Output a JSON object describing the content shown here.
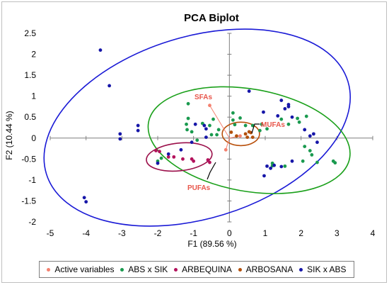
{
  "chart_data": {
    "type": "scatter",
    "title": "PCA Biplot",
    "xlabel": "F1 (89.56 %)",
    "ylabel": "F2 (10.44 %)",
    "xlim": [
      -5,
      4
    ],
    "ylim": [
      -2,
      2.5
    ],
    "x_ticks": [
      "-5",
      "-4",
      "-3",
      "-2",
      "-1",
      "0",
      "1",
      "2",
      "3",
      "4"
    ],
    "y_ticks": [
      "2.5",
      "2",
      "1.5",
      "1",
      "0.5",
      "0",
      "-0.5",
      "-1",
      "-1.5",
      "-2"
    ],
    "grid": false,
    "legend_position": "bottom",
    "series": [
      {
        "name": "Active variables",
        "color": "#f4816f",
        "points": [
          [
            -0.55,
            0.78
          ],
          [
            0.3,
            0.05
          ],
          [
            -0.1,
            -0.28
          ]
        ]
      },
      {
        "name": "ABS x SIK",
        "color": "#1a9a4f",
        "points": [
          [
            -1.15,
            0.82
          ],
          [
            -1.15,
            0.47
          ],
          [
            -1.2,
            0.33
          ],
          [
            -1.18,
            0.2
          ],
          [
            -1.05,
            0.15
          ],
          [
            -0.9,
            -0.05
          ],
          [
            -0.75,
            0.35
          ],
          [
            -0.55,
            0.3
          ],
          [
            -0.45,
            0.45
          ],
          [
            -0.5,
            0.08
          ],
          [
            -0.3,
            0.2
          ],
          [
            -0.35,
            0.08
          ],
          [
            0.1,
            0.6
          ],
          [
            0.1,
            0.43
          ],
          [
            0.15,
            0.32
          ],
          [
            0.3,
            0.48
          ],
          [
            0.45,
            0.3
          ],
          [
            0.65,
            0.3
          ],
          [
            0.85,
            0.18
          ],
          [
            1.05,
            0.22
          ],
          [
            0.9,
            0.33
          ],
          [
            1.45,
            0.45
          ],
          [
            1.65,
            0.33
          ],
          [
            1.9,
            0.47
          ],
          [
            1.95,
            0.38
          ],
          [
            2.15,
            0.52
          ],
          [
            1.2,
            -0.6
          ],
          [
            1.2,
            -0.66
          ],
          [
            1.55,
            -0.67
          ],
          [
            2.05,
            -0.55
          ],
          [
            2.1,
            -0.2
          ],
          [
            2.25,
            -0.3
          ],
          [
            2.3,
            -0.4
          ],
          [
            2.45,
            -0.58
          ],
          [
            2.9,
            -0.55
          ],
          [
            2.95,
            -0.59
          ],
          [
            -1.9,
            -0.48
          ],
          [
            -2.0,
            -0.55
          ]
        ]
      },
      {
        "name": "ARBEQUINA",
        "color": "#b3125c",
        "points": [
          [
            -2.05,
            -0.3
          ],
          [
            -1.95,
            -0.32
          ],
          [
            -1.7,
            -0.45
          ],
          [
            -1.55,
            -0.45
          ],
          [
            -1.3,
            -0.5
          ],
          [
            -1.05,
            -0.5
          ],
          [
            -1.0,
            -0.55
          ],
          [
            -0.6,
            -0.52
          ],
          [
            -0.55,
            -0.58
          ]
        ]
      },
      {
        "name": "ARBOSANA",
        "color": "#b3500c",
        "points": [
          [
            0.05,
            0.14
          ],
          [
            0.2,
            0.05
          ],
          [
            0.5,
            0.02
          ],
          [
            0.45,
            0.1
          ],
          [
            0.55,
            0.15
          ],
          [
            0.6,
            0.13
          ],
          [
            0.65,
            0.02
          ]
        ]
      },
      {
        "name": "SIK x ABS",
        "color": "#1616a8",
        "points": [
          [
            -3.6,
            2.1
          ],
          [
            -3.35,
            1.25
          ],
          [
            -3.05,
            0.1
          ],
          [
            -3.05,
            -0.02
          ],
          [
            -2.55,
            0.3
          ],
          [
            -2.55,
            0.18
          ],
          [
            -2.0,
            -0.6
          ],
          [
            -1.7,
            -0.38
          ],
          [
            -1.35,
            -0.28
          ],
          [
            -1.05,
            -0.1
          ],
          [
            -0.95,
            0.33
          ],
          [
            -0.7,
            0.3
          ],
          [
            -0.65,
            0.22
          ],
          [
            -0.65,
            0.02
          ],
          [
            -4.05,
            -1.42
          ],
          [
            -4.0,
            -1.52
          ],
          [
            0.55,
            1.12
          ],
          [
            0.95,
            0.62
          ],
          [
            1.05,
            -0.67
          ],
          [
            1.15,
            -0.72
          ],
          [
            1.35,
            0.53
          ],
          [
            1.45,
            0.9
          ],
          [
            1.55,
            0.7
          ],
          [
            1.65,
            0.8
          ],
          [
            1.75,
            -0.55
          ],
          [
            1.75,
            0.5
          ],
          [
            1.25,
            -0.65
          ],
          [
            1.45,
            -0.68
          ],
          [
            1.65,
            0.75
          ],
          [
            2.1,
            0.2
          ],
          [
            2.25,
            0.05
          ],
          [
            2.35,
            0.1
          ],
          [
            2.45,
            -0.1
          ],
          [
            0.97,
            -0.9
          ]
        ]
      }
    ],
    "ellipses": [
      {
        "group": "SIK x ABS",
        "color": "#1a1ad6",
        "cx": -0.9,
        "cy": 0.25,
        "rx": 4.4,
        "ry": 2.17,
        "angle_deg": 17
      },
      {
        "group": "ABS x SIK",
        "color": "#1aa01a",
        "cx": 0.55,
        "cy": -0.05,
        "rx": 2.85,
        "ry": 1.22,
        "angle_deg": -10
      },
      {
        "group": "ARBEQUINA",
        "color": "#9b0f4a",
        "cx": -1.4,
        "cy": -0.45,
        "rx": 0.92,
        "ry": 0.33,
        "angle_deg": 6
      },
      {
        "group": "ARBOSANA",
        "color": "#b84f0a",
        "cx": 0.32,
        "cy": 0.1,
        "rx": 0.52,
        "ry": 0.28,
        "angle_deg": 0
      }
    ],
    "annotations": [
      {
        "text": "SFAs",
        "color": "#e8564b"
      },
      {
        "text": "MUFAs",
        "color": "#e8564b"
      },
      {
        "text": "PUFAs",
        "color": "#e8564b"
      }
    ]
  }
}
